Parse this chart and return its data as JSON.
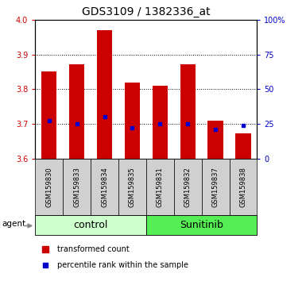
{
  "title": "GDS3109 / 1382336_at",
  "samples": [
    "GSM159830",
    "GSM159833",
    "GSM159834",
    "GSM159835",
    "GSM159831",
    "GSM159832",
    "GSM159837",
    "GSM159838"
  ],
  "bar_tops": [
    3.85,
    3.872,
    3.97,
    3.82,
    3.81,
    3.872,
    3.71,
    3.673
  ],
  "bar_bottom": 3.6,
  "blue_values": [
    3.71,
    3.7,
    3.72,
    3.69,
    3.7,
    3.7,
    3.685,
    3.695
  ],
  "ylim": [
    3.6,
    4.0
  ],
  "yticks_left": [
    3.6,
    3.7,
    3.8,
    3.9,
    4.0
  ],
  "yticks_right": [
    0,
    25,
    50,
    75,
    100
  ],
  "yticks_right_vals": [
    3.6,
    3.7,
    3.8,
    3.9,
    4.0
  ],
  "bar_color": "#cc0000",
  "blue_color": "#0000cc",
  "grid_color": "#000000",
  "group_colors": [
    "#ccffcc",
    "#55ee55"
  ],
  "agent_label": "agent",
  "legend_red": "transformed count",
  "legend_blue": "percentile rank within the sample",
  "tick_label_color_left": "#cc0000",
  "tick_label_color_right": "#0000cc",
  "bar_width": 0.55,
  "title_fontsize": 10,
  "sample_fontsize": 6,
  "group_fontsize": 9,
  "legend_fontsize": 7
}
